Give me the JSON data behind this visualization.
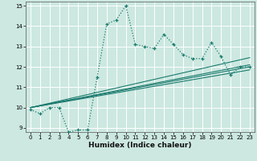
{
  "title": "",
  "xlabel": "Humidex (Indice chaleur)",
  "bg_color": "#cce8e0",
  "grid_color": "#ffffff",
  "line_color": "#1a7a6e",
  "xlim": [
    -0.5,
    23.5
  ],
  "ylim": [
    8.8,
    15.2
  ],
  "xticks": [
    0,
    1,
    2,
    3,
    4,
    5,
    6,
    7,
    8,
    9,
    10,
    11,
    12,
    13,
    14,
    15,
    16,
    17,
    18,
    19,
    20,
    21,
    22,
    23
  ],
  "yticks": [
    9,
    10,
    11,
    12,
    13,
    14,
    15
  ],
  "main_x": [
    0,
    1,
    2,
    3,
    4,
    5,
    6,
    7,
    8,
    9,
    10,
    11,
    12,
    13,
    14,
    15,
    16,
    17,
    18,
    19,
    20,
    21,
    22,
    23
  ],
  "main_y": [
    9.9,
    9.7,
    10.0,
    10.0,
    8.8,
    8.9,
    8.9,
    11.5,
    14.1,
    14.3,
    15.0,
    13.1,
    13.0,
    12.9,
    13.6,
    13.1,
    12.6,
    12.4,
    12.4,
    13.2,
    12.5,
    11.6,
    12.0,
    12.0
  ],
  "trend1_x": [
    0,
    23
  ],
  "trend1_y": [
    10.0,
    12.1
  ],
  "trend2_x": [
    0,
    23
  ],
  "trend2_y": [
    10.0,
    11.85
  ],
  "trend3_x": [
    0,
    23
  ],
  "trend3_y": [
    10.0,
    12.45
  ],
  "trend4_x": [
    0,
    23
  ],
  "trend4_y": [
    10.0,
    12.0
  ]
}
